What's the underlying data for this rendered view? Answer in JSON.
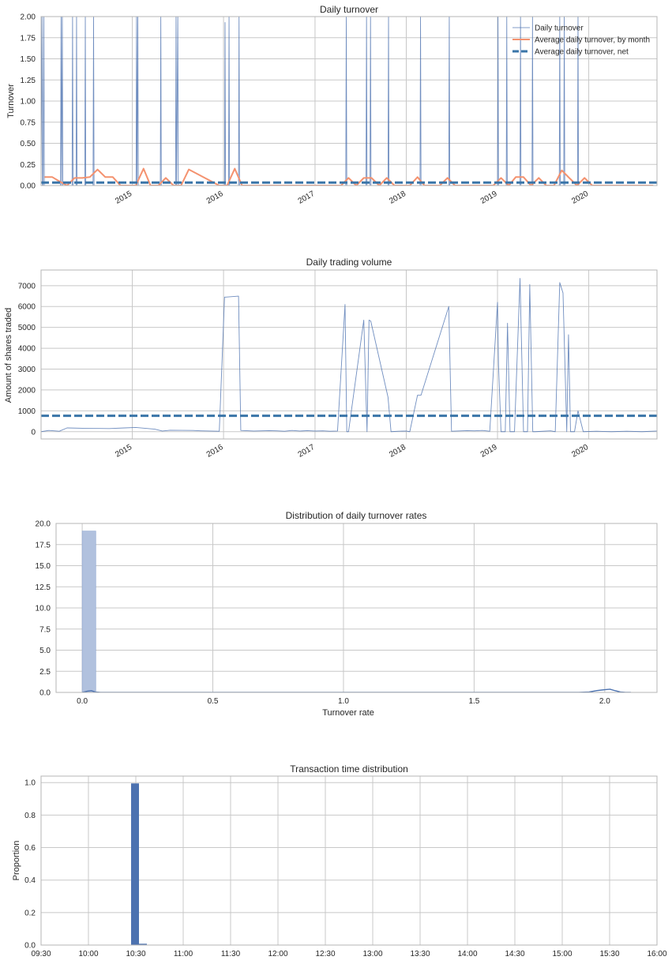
{
  "colors": {
    "daily_line": "#4c72b0",
    "monthly_line": "#f4926f",
    "net_line": "#3a75a8",
    "grid": "#c8c8c8",
    "frame": "#b4b4b4",
    "hist_fill": "#b1c1de",
    "hist_edge": "#8fa7d0",
    "bar_fill": "#4c72b0"
  },
  "chart_data": [
    {
      "type": "line",
      "title": "Daily turnover",
      "xlabel": "",
      "ylabel": "Turnover",
      "ylim": [
        0,
        2.0
      ],
      "xlim": [
        "2014-01-01",
        "2020-09-30"
      ],
      "x_tick_labels": [
        "2015",
        "2016",
        "2017",
        "2018",
        "2019",
        "2020"
      ],
      "x_tick_dates": [
        "2015-01-01",
        "2016-01-01",
        "2017-01-01",
        "2018-01-01",
        "2019-01-01",
        "2020-01-01"
      ],
      "y_tick_labels": [
        "0.00",
        "0.25",
        "0.50",
        "0.75",
        "1.00",
        "1.25",
        "1.50",
        "1.75",
        "2.00"
      ],
      "y_ticks": [
        0,
        0.25,
        0.5,
        0.75,
        1.0,
        1.25,
        1.5,
        1.75,
        2.0
      ],
      "grid": true,
      "legend_position": "top-right",
      "series": [
        {
          "name": "Daily turnover",
          "style": "thin-line",
          "x": [
            "2014-01-01",
            "2014-01-05",
            "2014-01-07",
            "2014-01-09",
            "2014-01-12",
            "2014-01-14",
            "2014-03-20",
            "2014-03-22",
            "2014-03-24",
            "2014-03-27",
            "2014-03-29",
            "2014-05-05",
            "2014-05-07",
            "2014-05-09",
            "2014-05-21",
            "2014-05-23",
            "2014-05-25",
            "2014-06-25",
            "2014-06-27",
            "2014-06-29",
            "2014-07-28",
            "2014-07-30",
            "2014-08-01",
            "2015-01-16",
            "2015-01-18",
            "2015-01-20",
            "2015-01-23",
            "2015-01-25",
            "2015-04-23",
            "2015-04-25",
            "2015-04-27",
            "2015-06-23",
            "2015-06-25",
            "2015-06-27",
            "2015-07-02",
            "2015-07-04",
            "2015-07-06",
            "2016-01-05",
            "2016-01-07",
            "2016-01-09",
            "2016-01-21",
            "2016-01-23",
            "2016-01-25",
            "2016-03-01",
            "2016-03-03",
            "2016-03-05",
            "2017-05-04",
            "2017-05-06",
            "2017-05-08",
            "2017-07-24",
            "2017-07-26",
            "2017-07-28",
            "2017-08-09",
            "2017-08-11",
            "2017-08-13",
            "2017-10-20",
            "2017-10-22",
            "2017-10-24",
            "2018-02-25",
            "2018-02-27",
            "2018-03-01",
            "2018-06-20",
            "2018-06-22",
            "2018-06-24",
            "2019-01-01",
            "2019-01-03",
            "2019-01-05",
            "2019-02-05",
            "2019-02-07",
            "2019-02-09",
            "2019-04-01",
            "2019-04-03",
            "2019-04-05",
            "2019-05-19",
            "2019-05-21",
            "2019-05-23",
            "2019-09-05",
            "2019-09-07",
            "2019-09-09",
            "2019-09-23",
            "2019-09-25",
            "2019-09-27",
            "2019-11-17",
            "2019-11-19",
            "2019-11-21",
            "2020-09-30"
          ],
          "values": [
            0,
            2,
            0,
            0,
            2,
            0,
            0,
            2,
            0,
            2,
            0,
            0,
            2,
            0,
            0,
            2,
            0,
            0,
            2,
            0,
            0,
            2,
            0,
            0,
            2,
            0,
            2,
            0,
            0,
            2,
            0,
            0,
            2,
            0,
            2,
            0,
            0,
            0,
            1.93,
            0,
            0,
            2,
            0,
            0,
            2,
            0,
            0,
            2,
            0,
            0,
            2,
            0,
            0,
            2,
            0,
            0,
            2,
            0,
            0,
            2,
            0,
            0,
            2,
            0,
            0,
            2,
            0,
            0,
            2,
            0,
            0,
            2,
            0,
            0,
            2,
            0,
            0,
            2,
            0,
            0,
            2,
            0,
            0,
            2,
            0,
            0
          ]
        },
        {
          "name": "Average daily turnover, by month",
          "style": "orange-line",
          "x": [
            "2014-01-15",
            "2014-02-15",
            "2014-03-15",
            "2014-04-15",
            "2014-05-15",
            "2014-06-15",
            "2014-07-15",
            "2014-08-15",
            "2014-09-15",
            "2014-10-15",
            "2014-11-15",
            "2014-12-15",
            "2015-01-15",
            "2015-02-15",
            "2015-03-15",
            "2015-04-15",
            "2015-05-15",
            "2015-06-15",
            "2015-07-15",
            "2015-08-15",
            "2015-12-15",
            "2016-01-15",
            "2016-02-15",
            "2016-03-15",
            "2016-04-15",
            "2017-04-15",
            "2017-05-15",
            "2017-06-15",
            "2017-07-15",
            "2017-08-15",
            "2017-09-15",
            "2017-10-15",
            "2017-11-15",
            "2017-12-15",
            "2018-01-15",
            "2018-02-15",
            "2018-03-15",
            "2018-04-15",
            "2018-05-15",
            "2018-06-15",
            "2018-07-15",
            "2018-12-15",
            "2019-01-15",
            "2019-02-15",
            "2019-03-15",
            "2019-04-15",
            "2019-05-15",
            "2019-06-15",
            "2019-07-15",
            "2019-08-15",
            "2019-09-15",
            "2019-10-15",
            "2019-11-15",
            "2019-12-15",
            "2020-01-15",
            "2020-02-15",
            "2020-09-15"
          ],
          "values": [
            0.1,
            0.1,
            0.05,
            0,
            0.09,
            0.09,
            0.1,
            0.19,
            0.1,
            0.1,
            0,
            0,
            0,
            0.2,
            0,
            0,
            0.09,
            0,
            0,
            0.19,
            0,
            0,
            0.2,
            0,
            0,
            0,
            0.09,
            0,
            0.09,
            0.09,
            0,
            0.09,
            0,
            0,
            0,
            0.1,
            0,
            0,
            0,
            0.09,
            0,
            0,
            0.09,
            0,
            0.1,
            0.1,
            0,
            0.09,
            0,
            0,
            0.18,
            0.09,
            0,
            0.09,
            0,
            0,
            0
          ]
        },
        {
          "name": "Average daily turnover, net",
          "style": "dashed-line",
          "constant": 0.035
        }
      ]
    },
    {
      "type": "line",
      "title": "Daily trading volume",
      "xlabel": "",
      "ylabel": "Amount of shares traded",
      "ylim": [
        -350,
        7750
      ],
      "xlim": [
        "2014-01-01",
        "2020-09-30"
      ],
      "x_tick_labels": [
        "2015",
        "2016",
        "2017",
        "2018",
        "2019",
        "2020"
      ],
      "x_tick_dates": [
        "2015-01-01",
        "2016-01-01",
        "2017-01-01",
        "2018-01-01",
        "2019-01-01",
        "2020-01-01"
      ],
      "y_tick_labels": [
        "0",
        "1000",
        "2000",
        "3000",
        "4000",
        "5000",
        "6000",
        "7000"
      ],
      "y_ticks": [
        0,
        1000,
        2000,
        3000,
        4000,
        5000,
        6000,
        7000
      ],
      "grid": true,
      "series": [
        {
          "name": "",
          "style": "thin-line",
          "x": [
            "2014-01-01",
            "2014-02-01",
            "2014-03-15",
            "2014-04-15",
            "2014-07-01",
            "2014-10-01",
            "2014-12-01",
            "2015-01-15",
            "2015-04-01",
            "2015-05-01",
            "2015-06-01",
            "2015-09-01",
            "2015-10-01",
            "2015-12-15",
            "2016-01-05",
            "2016-01-10",
            "2016-03-01",
            "2016-03-10",
            "2016-05-01",
            "2016-07-01",
            "2016-08-01",
            "2016-09-01",
            "2016-10-01",
            "2016-11-01",
            "2016-12-01",
            "2017-01-01",
            "2017-02-01",
            "2017-03-01",
            "2017-04-01",
            "2017-05-01",
            "2017-05-08",
            "2017-05-15",
            "2017-07-15",
            "2017-07-28",
            "2017-08-05",
            "2017-08-12",
            "2017-10-20",
            "2017-11-01",
            "2017-12-01",
            "2018-01-01",
            "2018-01-15",
            "2018-02-15",
            "2018-03-01",
            "2018-06-20",
            "2018-07-01",
            "2018-09-01",
            "2018-10-01",
            "2018-11-01",
            "2018-12-01",
            "2019-01-01",
            "2019-01-05",
            "2019-01-15",
            "2019-02-01",
            "2019-02-10",
            "2019-02-20",
            "2019-03-10",
            "2019-04-01",
            "2019-04-15",
            "2019-05-01",
            "2019-05-10",
            "2019-05-22",
            "2019-06-01",
            "2019-08-01",
            "2019-08-20",
            "2019-09-07",
            "2019-09-20",
            "2019-10-05",
            "2019-10-12",
            "2019-10-20",
            "2019-11-05",
            "2019-11-19",
            "2019-12-10",
            "2020-02-01",
            "2020-04-01",
            "2020-06-01",
            "2020-08-01",
            "2020-09-30"
          ],
          "values": [
            0,
            60,
            20,
            180,
            160,
            150,
            180,
            200,
            120,
            30,
            70,
            60,
            40,
            20,
            6450,
            6450,
            6500,
            60,
            30,
            50,
            40,
            20,
            60,
            30,
            50,
            30,
            40,
            20,
            30,
            6100,
            0,
            0,
            5350,
            0,
            5350,
            5300,
            1650,
            0,
            20,
            30,
            0,
            1750,
            1750,
            6000,
            20,
            50,
            40,
            60,
            20,
            6200,
            3200,
            0,
            0,
            5200,
            0,
            0,
            7350,
            0,
            0,
            7050,
            0,
            0,
            40,
            0,
            7150,
            6650,
            0,
            4650,
            0,
            0,
            1000,
            0,
            20,
            0,
            20,
            0,
            30
          ]
        },
        {
          "name": "",
          "style": "dashed-line",
          "constant": 760
        }
      ]
    },
    {
      "type": "histogram",
      "title": "Distribution of daily turnover rates",
      "xlabel": "Turnover rate",
      "ylabel": "",
      "xlim": [
        -0.1,
        2.2
      ],
      "ylim": [
        0,
        20.0
      ],
      "x_tick_labels": [
        "0.0",
        "0.5",
        "1.0",
        "1.5",
        "2.0"
      ],
      "x_ticks": [
        0,
        0.5,
        1.0,
        1.5,
        2.0
      ],
      "y_tick_labels": [
        "0.0",
        "2.5",
        "5.0",
        "7.5",
        "10.0",
        "12.5",
        "15.0",
        "17.5",
        "20.0"
      ],
      "y_ticks": [
        0,
        2.5,
        5,
        7.5,
        10,
        12.5,
        15,
        17.5,
        20
      ],
      "grid": true,
      "bins": [
        {
          "x0": 0.0,
          "x1": 0.052,
          "value": 19.1
        }
      ],
      "kde": {
        "x": [
          0.0,
          0.02,
          0.035,
          0.05,
          0.07,
          0.1,
          0.5,
          1.0,
          1.5,
          1.85,
          1.9,
          1.94,
          1.97,
          2.0,
          2.02,
          2.04,
          2.06,
          2.08,
          2.1
        ],
        "values": [
          0,
          0.15,
          0.2,
          0.05,
          0,
          0,
          0,
          0,
          0,
          0,
          0,
          0.05,
          0.22,
          0.32,
          0.38,
          0.2,
          0.05,
          0,
          0
        ]
      }
    },
    {
      "type": "bar",
      "title": "Transaction time distribution",
      "xlabel": "",
      "ylabel": "Proportion",
      "ylim": [
        0,
        1.04
      ],
      "xlim": [
        570,
        960
      ],
      "x_tick_labels": [
        "09:30",
        "10:00",
        "10:30",
        "11:00",
        "11:30",
        "12:00",
        "12:30",
        "13:00",
        "13:30",
        "14:00",
        "14:30",
        "15:00",
        "15:30",
        "16:00"
      ],
      "x_ticks": [
        570,
        600,
        630,
        660,
        690,
        720,
        750,
        780,
        810,
        840,
        870,
        900,
        930,
        960
      ],
      "y_tick_labels": [
        "0.0",
        "0.2",
        "0.4",
        "0.6",
        "0.8",
        "1.0"
      ],
      "y_ticks": [
        0,
        0.2,
        0.4,
        0.6,
        0.8,
        1.0
      ],
      "grid": true,
      "bars": [
        {
          "x0": 627,
          "x1": 632,
          "value": 0.995
        },
        {
          "x0": 632,
          "x1": 637,
          "value": 0.008
        }
      ]
    }
  ]
}
